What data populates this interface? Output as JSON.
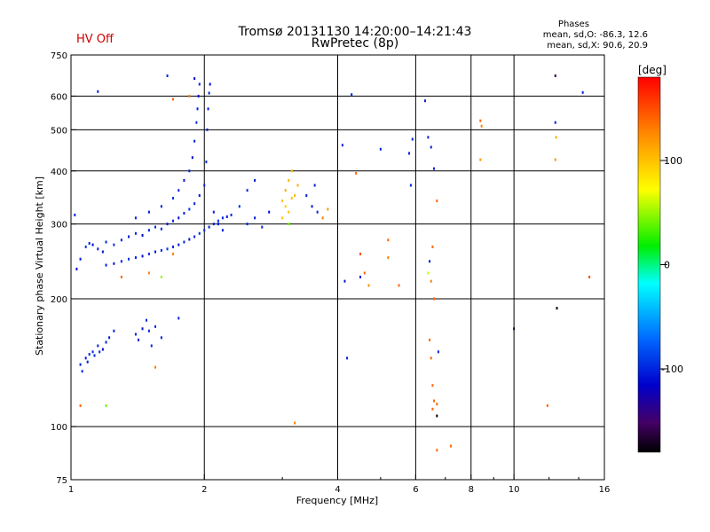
{
  "header": {
    "title_line1": "Tromsø 20131130 14:20:00–14:21:43",
    "title_line2": "RwPretec (8p)",
    "status": "HV Off",
    "status_color": "#d00000"
  },
  "phase_box": {
    "heading": "Phases",
    "line_o": "mean, sd,O: -86.3, 12.6",
    "line_x": "mean, sd,X:  90.6, 20.9"
  },
  "chart_data": {
    "type": "scatter",
    "xlabel": "Frequency [MHz]",
    "ylabel": "Stationary phase Virtual Height [km]",
    "xscale": "log",
    "yscale": "log",
    "xlim": [
      1,
      16
    ],
    "ylim": [
      75,
      750
    ],
    "x_ticks": [
      1,
      2,
      4,
      6,
      8,
      10,
      16
    ],
    "x_gridlines": [
      2,
      4,
      6,
      8,
      10
    ],
    "y_ticks": [
      75,
      100,
      200,
      300,
      400,
      500,
      600,
      750
    ],
    "y_gridlines": [
      100,
      200,
      300,
      400,
      500,
      600
    ],
    "grid": true,
    "colorbar": {
      "label": "[deg]",
      "range": [
        -180,
        180
      ],
      "ticks": [
        100,
        0,
        -100
      ],
      "placement": "right"
    },
    "points": [
      [
        1.02,
        315,
        -100
      ],
      [
        1.03,
        235,
        -110
      ],
      [
        1.05,
        248,
        -105
      ],
      [
        1.08,
        265,
        -95
      ],
      [
        1.1,
        270,
        -100
      ],
      [
        1.12,
        268,
        -110
      ],
      [
        1.15,
        262,
        -100
      ],
      [
        1.18,
        258,
        -105
      ],
      [
        1.2,
        272,
        -100
      ],
      [
        1.25,
        268,
        -95
      ],
      [
        1.3,
        275,
        -100
      ],
      [
        1.35,
        280,
        -105
      ],
      [
        1.4,
        285,
        -100
      ],
      [
        1.45,
        282,
        -110
      ],
      [
        1.5,
        290,
        -100
      ],
      [
        1.55,
        295,
        -95
      ],
      [
        1.6,
        292,
        -100
      ],
      [
        1.65,
        300,
        -105
      ],
      [
        1.7,
        305,
        -100
      ],
      [
        1.75,
        310,
        -110
      ],
      [
        1.8,
        318,
        -100
      ],
      [
        1.85,
        325,
        -95
      ],
      [
        1.9,
        335,
        -100
      ],
      [
        1.95,
        350,
        -105
      ],
      [
        2.0,
        370,
        -100
      ],
      [
        2.02,
        420,
        -95
      ],
      [
        2.03,
        500,
        -100
      ],
      [
        2.04,
        560,
        -105
      ],
      [
        2.05,
        610,
        -100
      ],
      [
        2.06,
        640,
        -110
      ],
      [
        1.2,
        240,
        -100
      ],
      [
        1.25,
        242,
        -105
      ],
      [
        1.3,
        245,
        -100
      ],
      [
        1.35,
        248,
        -95
      ],
      [
        1.4,
        250,
        -100
      ],
      [
        1.45,
        252,
        -110
      ],
      [
        1.5,
        255,
        -100
      ],
      [
        1.55,
        258,
        -105
      ],
      [
        1.6,
        260,
        -100
      ],
      [
        1.65,
        262,
        -95
      ],
      [
        1.7,
        265,
        -100
      ],
      [
        1.75,
        268,
        -105
      ],
      [
        1.8,
        272,
        -100
      ],
      [
        1.85,
        276,
        -110
      ],
      [
        1.9,
        280,
        -100
      ],
      [
        1.95,
        285,
        -95
      ],
      [
        2.0,
        290,
        -100
      ],
      [
        2.05,
        295,
        -105
      ],
      [
        2.1,
        300,
        -100
      ],
      [
        2.15,
        305,
        -95
      ],
      [
        2.2,
        310,
        -100
      ],
      [
        2.25,
        312,
        -105
      ],
      [
        2.3,
        315,
        -100
      ],
      [
        1.4,
        310,
        -100
      ],
      [
        1.5,
        320,
        -105
      ],
      [
        1.6,
        330,
        -100
      ],
      [
        1.7,
        345,
        -95
      ],
      [
        1.75,
        360,
        -100
      ],
      [
        1.8,
        380,
        -105
      ],
      [
        1.85,
        400,
        -100
      ],
      [
        1.88,
        430,
        -110
      ],
      [
        1.9,
        470,
        -100
      ],
      [
        1.92,
        520,
        -95
      ],
      [
        1.93,
        560,
        -100
      ],
      [
        1.94,
        600,
        -105
      ],
      [
        1.95,
        640,
        -100
      ],
      [
        2.1,
        320,
        -100
      ],
      [
        2.15,
        300,
        -105
      ],
      [
        2.2,
        290,
        -100
      ],
      [
        2.4,
        330,
        -95
      ],
      [
        2.5,
        300,
        -100
      ],
      [
        2.6,
        310,
        -105
      ],
      [
        2.7,
        295,
        -100
      ],
      [
        2.8,
        320,
        -110
      ],
      [
        2.5,
        360,
        -100
      ],
      [
        2.6,
        380,
        -105
      ],
      [
        3.0,
        340,
        100
      ],
      [
        3.05,
        360,
        110
      ],
      [
        3.1,
        380,
        105
      ],
      [
        3.15,
        400,
        100
      ],
      [
        3.05,
        330,
        95
      ],
      [
        3.1,
        320,
        100
      ],
      [
        3.2,
        350,
        105
      ],
      [
        3.0,
        310,
        100
      ],
      [
        3.25,
        370,
        110
      ],
      [
        3.15,
        345,
        100
      ],
      [
        3.1,
        300,
        40
      ],
      [
        3.2,
        102,
        130
      ],
      [
        3.4,
        350,
        -100
      ],
      [
        3.5,
        330,
        -105
      ],
      [
        3.6,
        320,
        -100
      ],
      [
        3.7,
        310,
        130
      ],
      [
        3.8,
        325,
        120
      ],
      [
        3.55,
        370,
        -100
      ],
      [
        1.05,
        140,
        -100
      ],
      [
        1.08,
        145,
        -105
      ],
      [
        1.1,
        148,
        -100
      ],
      [
        1.12,
        150,
        -95
      ],
      [
        1.15,
        155,
        -100
      ],
      [
        1.18,
        152,
        -110
      ],
      [
        1.2,
        158,
        -100
      ],
      [
        1.22,
        162,
        -105
      ],
      [
        1.25,
        168,
        -100
      ],
      [
        1.06,
        135,
        -100
      ],
      [
        1.09,
        142,
        -105
      ],
      [
        1.13,
        147,
        -100
      ],
      [
        1.16,
        150,
        -95
      ],
      [
        1.4,
        165,
        -100
      ],
      [
        1.45,
        170,
        -105
      ],
      [
        1.5,
        168,
        -100
      ],
      [
        1.55,
        172,
        -95
      ],
      [
        1.6,
        162,
        -100
      ],
      [
        1.42,
        160,
        -105
      ],
      [
        1.52,
        155,
        -100
      ],
      [
        1.48,
        178,
        -100
      ],
      [
        1.75,
        180,
        -100
      ],
      [
        1.55,
        138,
        130
      ],
      [
        1.05,
        112,
        140
      ],
      [
        1.2,
        112,
        40
      ],
      [
        1.3,
        225,
        140
      ],
      [
        1.5,
        230,
        130
      ],
      [
        1.6,
        225,
        50
      ],
      [
        1.7,
        255,
        130
      ],
      [
        1.15,
        615,
        -100
      ],
      [
        1.65,
        670,
        -100
      ],
      [
        1.7,
        590,
        140
      ],
      [
        1.85,
        600,
        130
      ],
      [
        1.9,
        660,
        -110
      ],
      [
        4.1,
        460,
        -100
      ],
      [
        4.15,
        220,
        -105
      ],
      [
        4.2,
        145,
        -100
      ],
      [
        4.3,
        605,
        -100
      ],
      [
        4.4,
        395,
        140
      ],
      [
        4.5,
        255,
        150
      ],
      [
        4.6,
        230,
        140
      ],
      [
        4.5,
        225,
        -100
      ],
      [
        4.7,
        215,
        120
      ],
      [
        5.0,
        450,
        -100
      ],
      [
        5.2,
        275,
        140
      ],
      [
        5.2,
        250,
        130
      ],
      [
        5.5,
        215,
        140
      ],
      [
        5.8,
        440,
        -100
      ],
      [
        5.9,
        475,
        -100
      ],
      [
        5.85,
        370,
        -100
      ],
      [
        6.3,
        585,
        -100
      ],
      [
        6.4,
        480,
        -100
      ],
      [
        6.5,
        455,
        -100
      ],
      [
        6.6,
        405,
        -100
      ],
      [
        6.4,
        230,
        60
      ],
      [
        6.45,
        245,
        -100
      ],
      [
        6.55,
        265,
        140
      ],
      [
        6.5,
        220,
        130
      ],
      [
        6.7,
        340,
        140
      ],
      [
        6.6,
        200,
        140
      ],
      [
        6.45,
        160,
        140
      ],
      [
        6.5,
        145,
        140
      ],
      [
        6.55,
        125,
        140
      ],
      [
        6.6,
        115,
        140
      ],
      [
        6.55,
        110,
        140
      ],
      [
        6.7,
        106,
        -180
      ],
      [
        6.75,
        150,
        -100
      ],
      [
        6.7,
        113,
        140
      ],
      [
        6.7,
        88,
        140
      ],
      [
        7.2,
        90,
        140
      ],
      [
        8.4,
        525,
        140
      ],
      [
        8.45,
        510,
        130
      ],
      [
        8.4,
        425,
        120
      ],
      [
        10.0,
        170,
        -170
      ],
      [
        11.9,
        112,
        140
      ],
      [
        12.4,
        670,
        -160
      ],
      [
        12.4,
        520,
        -100
      ],
      [
        12.45,
        480,
        110
      ],
      [
        12.4,
        425,
        120
      ],
      [
        12.5,
        190,
        -180
      ],
      [
        14.3,
        612,
        -100
      ],
      [
        14.8,
        225,
        150
      ]
    ]
  }
}
